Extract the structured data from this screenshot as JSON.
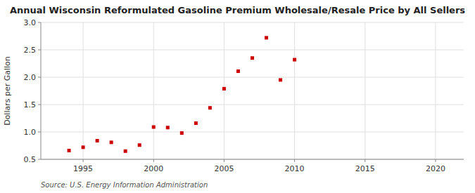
{
  "chart_data": {
    "type": "scatter",
    "title": "Annual Wisconsin Reformulated Gasoline Premium Wholesale/Resale Price by All Sellers",
    "ylabel": "Dollars per Gallon",
    "annotations": [
      "Source: U.S. Energy Information Administration"
    ],
    "x": [
      1994,
      1995,
      1996,
      1997,
      1998,
      1999,
      2000,
      2001,
      2002,
      2003,
      2004,
      2005,
      2006,
      2007,
      2008,
      2009,
      2010
    ],
    "values": [
      0.66,
      0.72,
      0.84,
      0.81,
      0.65,
      0.76,
      1.09,
      1.08,
      0.98,
      1.16,
      1.44,
      1.79,
      2.11,
      2.35,
      2.72,
      1.95,
      2.32
    ],
    "color": "#cc0000",
    "marker": "square",
    "grid": true,
    "xlim": [
      1992,
      2022
    ],
    "xticks": [
      1995,
      2000,
      2005,
      2010,
      2015,
      2020
    ],
    "ylim": [
      0.5,
      3.0
    ],
    "yticks": [
      0.5,
      {
        "value": 1.0,
        "label": "1.0"
      },
      1.5,
      {
        "value": 2.0,
        "label": "2.0"
      },
      2.5,
      {
        "value": 3.0,
        "label": "3.0"
      }
    ]
  }
}
